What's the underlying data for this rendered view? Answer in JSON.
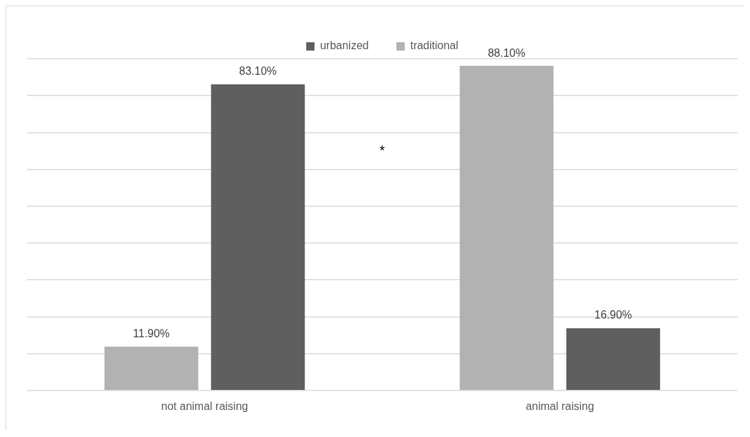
{
  "chart_data": {
    "type": "bar",
    "categories": [
      "not animal raising",
      "animal raising"
    ],
    "series": [
      {
        "name": "traditional",
        "color": "#b2b2b2",
        "values": [
          11.9,
          88.1
        ],
        "value_labels": [
          "11.90%",
          "88.10%"
        ]
      },
      {
        "name": "urbanized",
        "color": "#5f5f5f",
        "values": [
          83.1,
          16.9
        ],
        "value_labels": [
          "83.10%",
          "16.90%"
        ]
      }
    ],
    "annotations": [
      "*"
    ],
    "grid": "y",
    "legend": "top"
  }
}
